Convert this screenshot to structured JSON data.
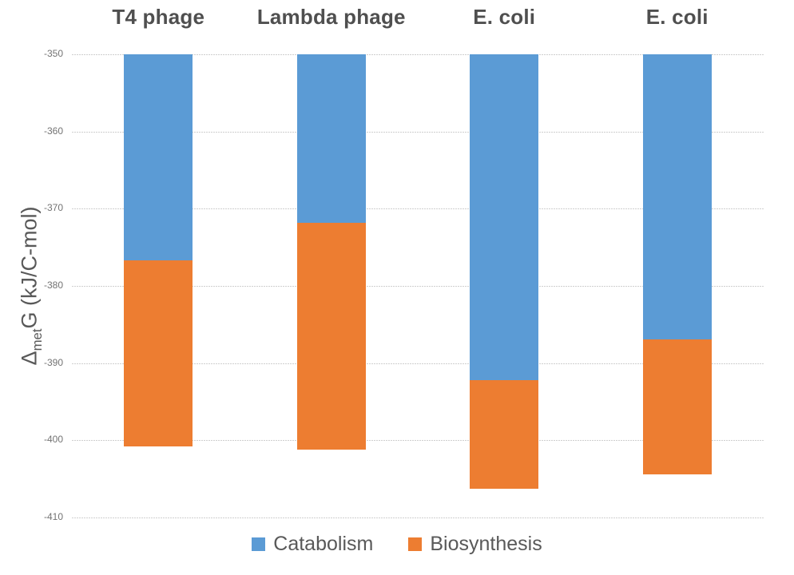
{
  "chart_data": {
    "type": "bar",
    "stacked": true,
    "title": "",
    "categories": [
      "T4 phage",
      "Lambda phage",
      "E. coli",
      "E. coli"
    ],
    "baseline": -350,
    "series": [
      {
        "name": "Catabolism",
        "color": "#5B9BD5",
        "segment_end": [
          -376.7,
          -371.8,
          -392.2,
          -386.9
        ],
        "segment_span": [
          26.7,
          21.8,
          42.2,
          36.9
        ]
      },
      {
        "name": "Biosynthesis",
        "color": "#ED7D31",
        "segment_end": [
          -400.8,
          -401.2,
          -406.3,
          -404.4
        ],
        "segment_span": [
          24.1,
          29.4,
          14.1,
          17.5
        ]
      }
    ],
    "ylabel": {
      "delta": "Δ",
      "sub": "met",
      "rest": "G (kJ/C-mol)"
    },
    "yticks": [
      -350,
      -360,
      -370,
      -380,
      -390,
      -400,
      -410
    ],
    "ylim": [
      -410,
      -350
    ],
    "xlabel": "",
    "grid": "horizontal-dashed",
    "legend_position": "bottom"
  },
  "colors": {
    "catabolism": "#5B9BD5",
    "biosynthesis": "#ED7D31",
    "gridline": "#CFCFCF",
    "tick_text": "#737373",
    "header_text": "#4F4F4F",
    "axis_title_text": "#595959",
    "legend_text": "#595959",
    "background": "#FFFFFF"
  }
}
